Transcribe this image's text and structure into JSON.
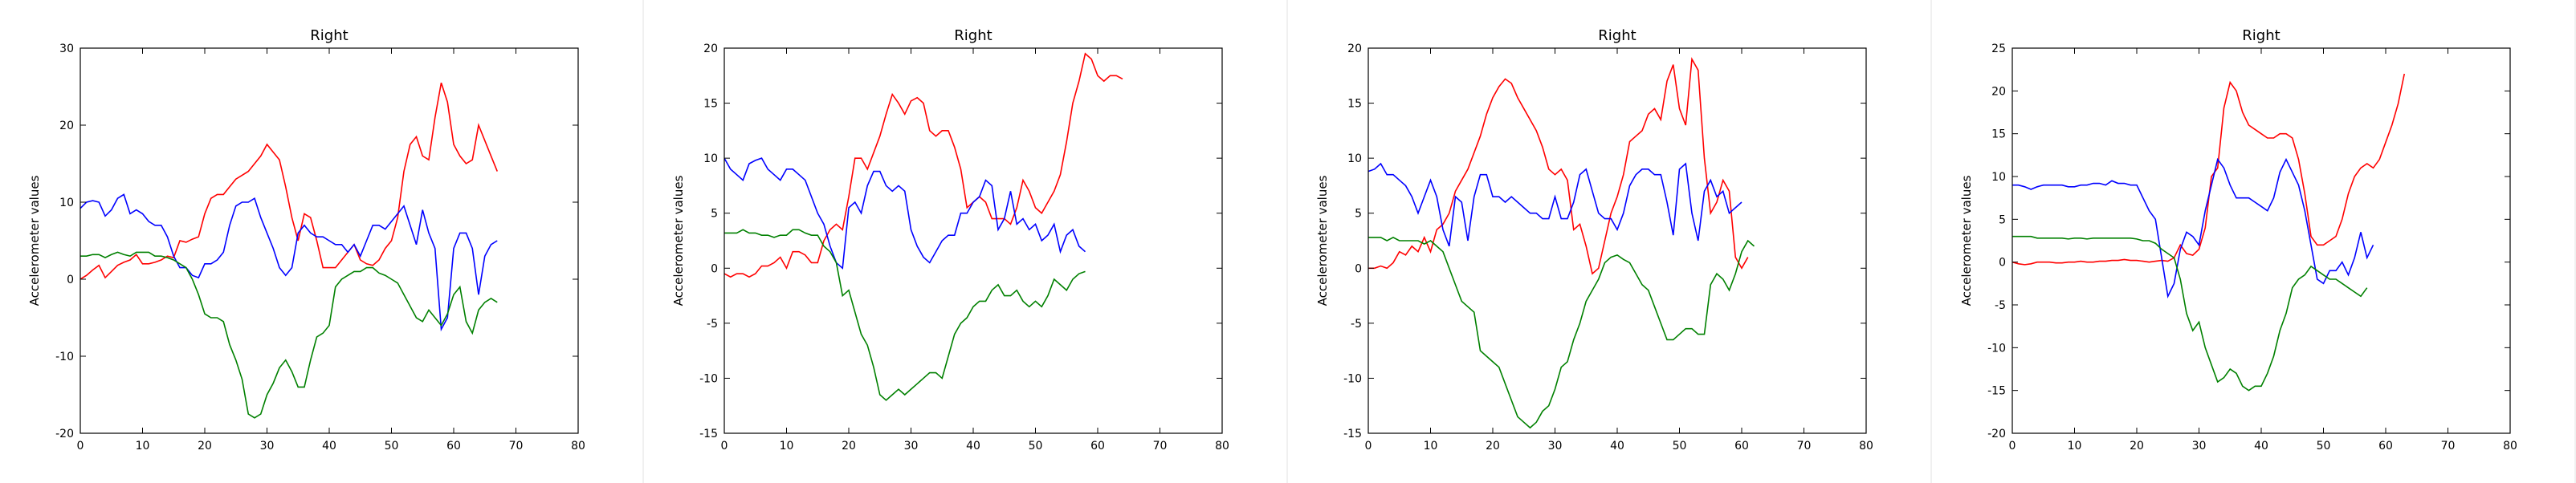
{
  "colors": {
    "series1": "#ff0000",
    "series2": "#0000ff",
    "series3": "#008000"
  },
  "chart_data": [
    {
      "type": "line",
      "title": "Right",
      "xlabel": "",
      "ylabel": "Accelerometer values",
      "xlim": [
        0,
        80
      ],
      "ylim": [
        -20,
        30
      ],
      "xticks": [
        0,
        10,
        20,
        30,
        40,
        50,
        60,
        70,
        80
      ],
      "yticks": [
        -20,
        -10,
        0,
        10,
        20,
        30
      ],
      "series": [
        {
          "color": "red",
          "values": [
            0,
            0.5,
            1.2,
            1.8,
            0.2,
            1.0,
            1.8,
            2.2,
            2.5,
            3.2,
            2.0,
            2.0,
            2.2,
            2.5,
            3.0,
            2.8,
            5.0,
            4.8,
            5.2,
            5.5,
            8.5,
            10.5,
            11,
            11,
            12,
            13,
            13.5,
            14,
            15,
            16,
            17.5,
            16.5,
            15.5,
            12,
            8,
            5,
            8.5,
            8,
            5,
            1.5,
            1.5,
            1.5,
            2.5,
            3.5,
            4.5,
            2.5,
            2.0,
            1.8,
            2.5,
            4.0,
            5.0,
            8.0,
            14.0,
            17.5,
            18.5,
            16.0,
            15.5,
            21.0,
            25.5,
            23.0,
            17.5,
            16.0,
            15.0,
            15.5,
            20.0,
            18.0,
            16.0,
            14.0
          ]
        },
        {
          "color": "blue",
          "values": [
            9.2,
            10.0,
            10.2,
            10.0,
            8.2,
            9.0,
            10.5,
            11.0,
            8.5,
            9.0,
            8.5,
            7.5,
            7.0,
            7.0,
            5.5,
            3.0,
            1.5,
            1.5,
            0.5,
            0.2,
            2.0,
            2.0,
            2.5,
            3.5,
            7.0,
            9.5,
            10.0,
            10.0,
            10.5,
            8.0,
            6.0,
            4.0,
            1.5,
            0.5,
            1.5,
            6.0,
            7.0,
            6.0,
            5.5,
            5.5,
            5.0,
            4.5,
            4.5,
            3.5,
            4.5,
            3.0,
            5.0,
            7.0,
            7.0,
            6.5,
            7.5,
            8.5,
            9.5,
            7.0,
            4.5,
            9.0,
            6.0,
            4.0,
            -6.5,
            -5.0,
            4.0,
            6.0,
            6.0,
            4.0,
            -2.0,
            3.0,
            4.5,
            5.0
          ]
        },
        {
          "color": "green",
          "values": [
            3.0,
            3.0,
            3.2,
            3.2,
            2.8,
            3.2,
            3.5,
            3.2,
            3.0,
            3.5,
            3.5,
            3.5,
            3.0,
            3.0,
            2.8,
            2.5,
            2.0,
            1.5,
            0.0,
            -2.0,
            -4.5,
            -5.0,
            -5.0,
            -5.5,
            -8.5,
            -10.5,
            -13,
            -17.5,
            -18,
            -17.5,
            -15,
            -13.5,
            -11.5,
            -10.5,
            -12.0,
            -14.0,
            -14.0,
            -10.5,
            -7.5,
            -7.0,
            -6.0,
            -1.0,
            0.0,
            0.5,
            1.0,
            1.0,
            1.5,
            1.5,
            0.8,
            0.5,
            0.0,
            -0.5,
            -2.0,
            -3.5,
            -5.0,
            -5.5,
            -4.0,
            -5.0,
            -6.0,
            -4.5,
            -2.0,
            -1.0,
            -5.5,
            -7.0,
            -4.0,
            -3.0,
            -2.5,
            -3.0
          ]
        }
      ]
    },
    {
      "type": "line",
      "title": "Right",
      "xlabel": "",
      "ylabel": "Accelerometer values",
      "xlim": [
        0,
        80
      ],
      "ylim": [
        -15,
        20
      ],
      "xticks": [
        0,
        10,
        20,
        30,
        40,
        50,
        60,
        70,
        80
      ],
      "yticks": [
        -15,
        -10,
        -5,
        0,
        5,
        10,
        15,
        20
      ],
      "series": [
        {
          "color": "red",
          "values": [
            -0.5,
            -0.8,
            -0.5,
            -0.5,
            -0.8,
            -0.5,
            0.2,
            0.2,
            0.5,
            1.0,
            0.0,
            1.5,
            1.5,
            1.2,
            0.5,
            0.5,
            2.5,
            3.5,
            4.0,
            3.5,
            6.5,
            10.0,
            10.0,
            9.0,
            10.5,
            12.0,
            14.0,
            15.8,
            15.0,
            14.0,
            15.2,
            15.5,
            15.0,
            12.5,
            12.0,
            12.5,
            12.5,
            11.0,
            9.0,
            5.5,
            6.0,
            6.5,
            6.0,
            4.5,
            4.5,
            4.5,
            4.0,
            5.5,
            8.0,
            7.0,
            5.5,
            5.0,
            6.0,
            7.0,
            8.5,
            11.5,
            15.0,
            17.0,
            19.5,
            19.0,
            17.5,
            17.0,
            17.5,
            17.5,
            17.2
          ]
        },
        {
          "color": "blue",
          "values": [
            10.0,
            9.0,
            8.5,
            8.0,
            9.5,
            9.8,
            10.0,
            9.0,
            8.5,
            8.0,
            9.0,
            9.0,
            8.5,
            8.0,
            6.5,
            5.0,
            4.0,
            2.0,
            0.5,
            0.0,
            5.5,
            6.0,
            5.0,
            7.5,
            8.8,
            8.8,
            7.5,
            7.0,
            7.5,
            7.0,
            3.5,
            2.0,
            1.0,
            0.5,
            1.5,
            2.5,
            3.0,
            3.0,
            5.0,
            5.0,
            6.0,
            6.5,
            8.0,
            7.5,
            3.5,
            4.5,
            7.0,
            4.0,
            4.5,
            3.5,
            4.0,
            2.5,
            3.0,
            4.0,
            1.5,
            3.0,
            3.5,
            2.0,
            1.5
          ]
        },
        {
          "color": "green",
          "values": [
            3.2,
            3.2,
            3.2,
            3.5,
            3.2,
            3.2,
            3.0,
            3.0,
            2.8,
            3.0,
            3.0,
            3.5,
            3.5,
            3.2,
            3.0,
            3.0,
            2.0,
            1.5,
            0.5,
            -2.5,
            -2.0,
            -4.0,
            -6.0,
            -7.0,
            -9.0,
            -11.5,
            -12.0,
            -11.5,
            -11.0,
            -11.5,
            -11.0,
            -10.5,
            -10.0,
            -9.5,
            -9.5,
            -10.0,
            -8.0,
            -6.0,
            -5.0,
            -4.5,
            -3.5,
            -3.0,
            -3.0,
            -2.0,
            -1.5,
            -2.5,
            -2.5,
            -2.0,
            -3.0,
            -3.5,
            -3.0,
            -3.5,
            -2.5,
            -1.0,
            -1.5,
            -2.0,
            -1.0,
            -0.5,
            -0.3
          ]
        }
      ]
    },
    {
      "type": "line",
      "title": "Right",
      "xlabel": "",
      "ylabel": "Accelerometer values",
      "xlim": [
        0,
        80
      ],
      "ylim": [
        -15,
        20
      ],
      "xticks": [
        0,
        10,
        20,
        30,
        40,
        50,
        60,
        70,
        80
      ],
      "yticks": [
        -15,
        -10,
        -5,
        0,
        5,
        10,
        15,
        20
      ],
      "series": [
        {
          "color": "red",
          "values": [
            0,
            0,
            0.2,
            0,
            0.5,
            1.5,
            1.2,
            2.0,
            1.5,
            2.8,
            1.5,
            3.5,
            4.0,
            5.0,
            7.0,
            8.0,
            9.0,
            10.5,
            12.0,
            14.0,
            15.5,
            16.5,
            17.2,
            16.8,
            15.5,
            14.5,
            13.5,
            12.5,
            11.0,
            9.0,
            8.5,
            9.0,
            8.0,
            3.5,
            4.0,
            2.0,
            -0.5,
            0.0,
            2.5,
            5.0,
            6.5,
            8.5,
            11.5,
            12.0,
            12.5,
            14.0,
            14.5,
            13.5,
            17.0,
            18.5,
            14.5,
            13.0,
            19.0,
            18.0,
            10.0,
            5.0,
            6.0,
            8.0,
            7.0,
            1.0,
            0.0,
            1.0
          ]
        },
        {
          "color": "blue",
          "values": [
            8.8,
            9.0,
            9.5,
            8.5,
            8.5,
            8.0,
            7.5,
            6.5,
            5.0,
            6.5,
            8.0,
            6.5,
            3.5,
            2.0,
            6.5,
            6.0,
            2.5,
            6.5,
            8.5,
            8.5,
            6.5,
            6.5,
            6.0,
            6.5,
            6.0,
            5.5,
            5.0,
            5.0,
            4.5,
            4.5,
            6.5,
            4.5,
            4.5,
            6.0,
            8.5,
            9.0,
            7.0,
            5.0,
            4.5,
            4.5,
            3.5,
            5.0,
            7.5,
            8.5,
            9.0,
            9.0,
            8.5,
            8.5,
            6.0,
            3.0,
            9.0,
            9.5,
            5.0,
            2.5,
            7.0,
            8.0,
            6.5,
            7.0,
            5.0,
            5.5,
            6.0
          ]
        },
        {
          "color": "green",
          "values": [
            2.8,
            2.8,
            2.8,
            2.5,
            2.8,
            2.5,
            2.5,
            2.5,
            2.5,
            2.2,
            2.5,
            2.0,
            1.5,
            0.0,
            -1.5,
            -3.0,
            -3.5,
            -4.0,
            -7.5,
            -8.0,
            -8.5,
            -9.0,
            -10.5,
            -12.0,
            -13.5,
            -14.0,
            -14.5,
            -14.0,
            -13.0,
            -12.5,
            -11.0,
            -9.0,
            -8.5,
            -6.5,
            -5.0,
            -3.0,
            -2.0,
            -1.0,
            0.5,
            1.0,
            1.2,
            0.8,
            0.5,
            -0.5,
            -1.5,
            -2.0,
            -3.5,
            -5.0,
            -6.5,
            -6.5,
            -6.0,
            -5.5,
            -5.5,
            -6.0,
            -6.0,
            -1.5,
            -0.5,
            -1.0,
            -2.0,
            -0.5,
            1.5,
            2.5,
            2.0
          ]
        }
      ]
    },
    {
      "type": "line",
      "title": "Right",
      "xlabel": "",
      "ylabel": "Accelerometer values",
      "xlim": [
        0,
        80
      ],
      "ylim": [
        -20,
        25
      ],
      "xticks": [
        0,
        10,
        20,
        30,
        40,
        50,
        60,
        70,
        80
      ],
      "yticks": [
        -20,
        -15,
        -10,
        -5,
        0,
        5,
        10,
        15,
        20,
        25
      ],
      "series": [
        {
          "color": "red",
          "values": [
            0,
            -0.2,
            -0.3,
            -0.2,
            0,
            0,
            0,
            -0.1,
            -0.1,
            0,
            0,
            0.1,
            0,
            0,
            0.1,
            0.1,
            0.2,
            0.2,
            0.3,
            0.2,
            0.2,
            0.1,
            0,
            0.1,
            0.2,
            0.1,
            0.5,
            2.0,
            1.0,
            0.8,
            1.5,
            4.0,
            10.0,
            11.0,
            18.0,
            21.0,
            20.0,
            17.5,
            16.0,
            15.5,
            15.0,
            14.5,
            14.5,
            15.0,
            15.0,
            14.5,
            12.0,
            8.0,
            3.0,
            2.0,
            2.0,
            2.5,
            3.0,
            5.0,
            8.0,
            10.0,
            11.0,
            11.5,
            11.0,
            12.0,
            14.0,
            16.0,
            18.5,
            22.0
          ]
        },
        {
          "color": "blue",
          "values": [
            9.0,
            9.0,
            8.8,
            8.5,
            8.8,
            9.0,
            9.0,
            9.0,
            9.0,
            8.8,
            8.8,
            9.0,
            9.0,
            9.2,
            9.2,
            9.0,
            9.5,
            9.2,
            9.2,
            9.0,
            9.0,
            7.5,
            6.0,
            5.0,
            0.5,
            -4.0,
            -2.5,
            1.5,
            3.5,
            3.0,
            2.0,
            6.0,
            9.0,
            12.0,
            11.0,
            9.0,
            7.5,
            7.5,
            7.5,
            7.0,
            6.5,
            6.0,
            7.5,
            10.5,
            12.0,
            10.5,
            9.0,
            6.0,
            2.0,
            -2.0,
            -2.5,
            -1.0,
            -1.0,
            0.0,
            -1.5,
            0.5,
            3.5,
            0.5,
            2.0
          ]
        },
        {
          "color": "green",
          "values": [
            3.0,
            3.0,
            3.0,
            3.0,
            2.8,
            2.8,
            2.8,
            2.8,
            2.8,
            2.7,
            2.8,
            2.8,
            2.7,
            2.8,
            2.8,
            2.8,
            2.8,
            2.8,
            2.8,
            2.8,
            2.7,
            2.5,
            2.5,
            2.2,
            1.5,
            1.0,
            0.5,
            -2.0,
            -6.0,
            -8.0,
            -7.0,
            -10.0,
            -12.0,
            -14.0,
            -13.5,
            -12.5,
            -13.0,
            -14.5,
            -15.0,
            -14.5,
            -14.5,
            -13.0,
            -11.0,
            -8.0,
            -6.0,
            -3.0,
            -2.0,
            -1.5,
            -0.5,
            -1.0,
            -1.5,
            -2.0,
            -2.0,
            -2.5,
            -3.0,
            -3.5,
            -4.0,
            -3.0
          ]
        }
      ]
    }
  ]
}
